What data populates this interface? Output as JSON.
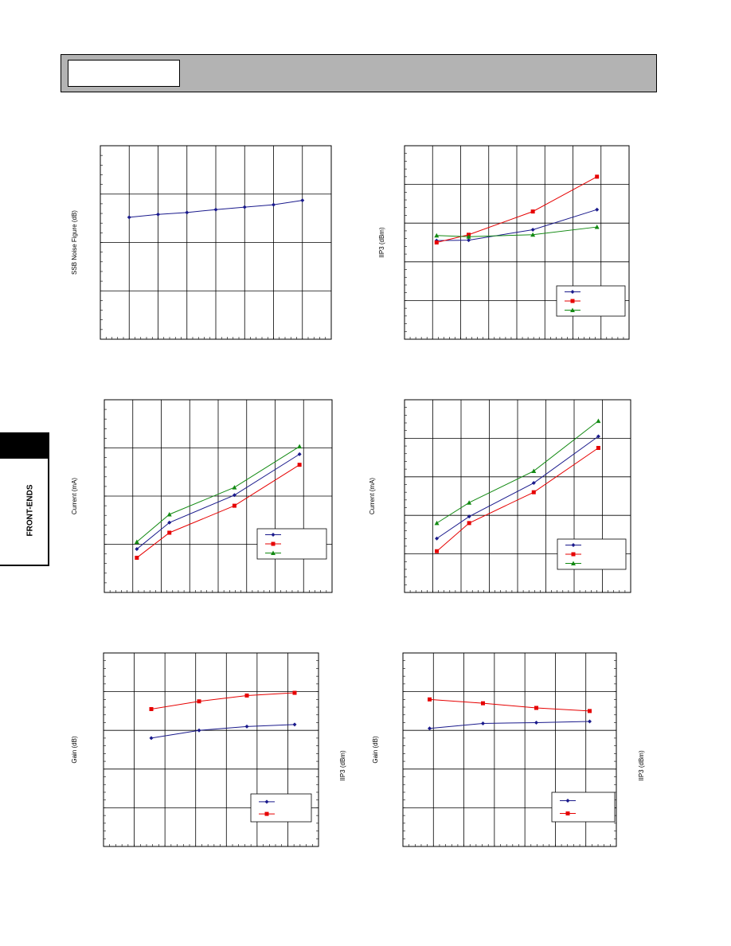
{
  "side_tab": {
    "label": "FRONT-ENDS"
  },
  "chart_data": [
    {
      "type": "line",
      "title": "",
      "ylabel": "SSB Noise Figure (dB)",
      "y2label": "",
      "grid": true,
      "x": [
        1,
        2,
        3,
        4,
        5,
        6,
        7
      ],
      "xlim": [
        0,
        8
      ],
      "ylim": [
        0,
        4
      ],
      "series": [
        {
          "name": "",
          "color": "#1a1a8c",
          "marker": "diamond",
          "values": [
            2.52,
            2.58,
            2.62,
            2.68,
            2.73,
            2.78,
            2.87
          ]
        }
      ]
    },
    {
      "type": "line",
      "title": "",
      "ylabel": "IIP3 (dBm)",
      "y2label": "",
      "grid": true,
      "x": [
        1,
        2,
        4,
        6
      ],
      "xlim": [
        0,
        7
      ],
      "ylim": [
        0,
        5
      ],
      "legend": {
        "position": "bottom-right",
        "entries": [
          "",
          "",
          ""
        ]
      },
      "series": [
        {
          "name": "",
          "color": "#1a1a8c",
          "marker": "diamond",
          "values": [
            2.55,
            2.56,
            2.83,
            3.35
          ]
        },
        {
          "name": "",
          "color": "#e60000",
          "marker": "square",
          "values": [
            2.5,
            2.7,
            3.3,
            4.2
          ]
        },
        {
          "name": "",
          "color": "#138a13",
          "marker": "triangle",
          "values": [
            2.68,
            2.65,
            2.7,
            2.9
          ]
        }
      ]
    },
    {
      "type": "line",
      "title": "",
      "ylabel": "Current (mA)",
      "y2label": "",
      "grid": true,
      "x": [
        1,
        2,
        4,
        6
      ],
      "xlim": [
        0,
        7
      ],
      "ylim": [
        0,
        4
      ],
      "legend": {
        "position": "bottom-right",
        "entries": [
          "",
          "",
          ""
        ]
      },
      "series": [
        {
          "name": "",
          "color": "#1a1a8c",
          "marker": "diamond",
          "values": [
            0.9,
            1.45,
            2.02,
            2.87
          ]
        },
        {
          "name": "",
          "color": "#e60000",
          "marker": "square",
          "values": [
            0.72,
            1.24,
            1.8,
            2.65
          ]
        },
        {
          "name": "",
          "color": "#138a13",
          "marker": "triangle",
          "values": [
            1.05,
            1.62,
            2.18,
            3.03
          ]
        }
      ]
    },
    {
      "type": "line",
      "title": "",
      "ylabel": "Current (mA)",
      "y2label": "",
      "grid": true,
      "x": [
        1,
        2,
        4,
        6
      ],
      "xlim": [
        0,
        7
      ],
      "ylim": [
        0,
        5
      ],
      "legend": {
        "position": "bottom-right",
        "entries": [
          "",
          "",
          ""
        ]
      },
      "series": [
        {
          "name": "",
          "color": "#1a1a8c",
          "marker": "diamond",
          "values": [
            1.4,
            1.97,
            2.84,
            4.05
          ]
        },
        {
          "name": "",
          "color": "#e60000",
          "marker": "square",
          "values": [
            1.07,
            1.8,
            2.6,
            3.75
          ]
        },
        {
          "name": "",
          "color": "#138a13",
          "marker": "triangle",
          "values": [
            1.8,
            2.33,
            3.15,
            4.45
          ]
        }
      ]
    },
    {
      "type": "line",
      "title": "",
      "ylabel": "Gain (dB)",
      "y2label": "IIP3 (dBm)",
      "grid": true,
      "x": [
        1,
        2,
        3,
        4
      ],
      "xlim": [
        0,
        4.5
      ],
      "ylim": [
        0,
        5
      ],
      "legend": {
        "position": "bottom-right",
        "entries": [
          "",
          ""
        ]
      },
      "series": [
        {
          "name": "",
          "color": "#1a1a8c",
          "marker": "diamond",
          "values": [
            2.8,
            3.0,
            3.1,
            3.15
          ]
        },
        {
          "name": "",
          "color": "#e60000",
          "marker": "square",
          "values": [
            3.55,
            3.75,
            3.9,
            3.97
          ]
        }
      ]
    },
    {
      "type": "line",
      "title": "",
      "ylabel": "Gain (dB)",
      "y2label": "IIP3 (dBm)",
      "grid": true,
      "x": [
        1,
        2,
        3,
        4
      ],
      "xlim": [
        0.5,
        4.5
      ],
      "ylim": [
        0,
        5
      ],
      "legend": {
        "position": "bottom-right",
        "entries": [
          "",
          ""
        ]
      },
      "series": [
        {
          "name": "",
          "color": "#1a1a8c",
          "marker": "diamond",
          "values": [
            3.05,
            3.18,
            3.2,
            3.23
          ]
        },
        {
          "name": "",
          "color": "#e60000",
          "marker": "square",
          "values": [
            3.8,
            3.7,
            3.58,
            3.5
          ]
        }
      ]
    }
  ]
}
